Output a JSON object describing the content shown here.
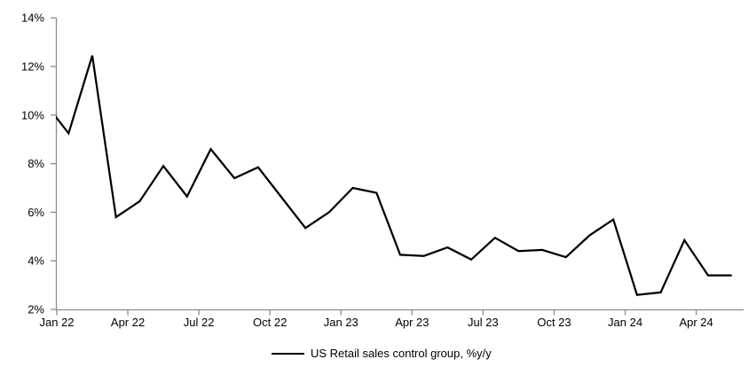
{
  "chart_data": {
    "type": "line",
    "title": "",
    "xlabel": "",
    "ylabel": "",
    "grid": false,
    "legend": "US Retail sales control group, %y/y",
    "legend_position": "bottom-center",
    "line_color": "#000000",
    "axis_color": "#8c8c8c",
    "text_color": "#000000",
    "ylim": [
      2,
      14
    ],
    "y_tick_labels": [
      "2%",
      "4%",
      "6%",
      "8%",
      "10%",
      "12%",
      "14%"
    ],
    "y_tick_values": [
      2,
      4,
      6,
      8,
      10,
      12,
      14
    ],
    "x_tick_labels": [
      {
        "label": "Jan 22",
        "month_index": 1
      },
      {
        "label": "Apr 22",
        "month_index": 4
      },
      {
        "label": "Jul 22",
        "month_index": 7
      },
      {
        "label": "Oct 22",
        "month_index": 10
      },
      {
        "label": "Jan 23",
        "month_index": 13
      },
      {
        "label": "Apr 23",
        "month_index": 16
      },
      {
        "label": "Jul 23",
        "month_index": 19
      },
      {
        "label": "Oct 23",
        "month_index": 22
      },
      {
        "label": "Jan 24",
        "month_index": 25
      },
      {
        "label": "Apr 24",
        "month_index": 28
      }
    ],
    "series": [
      {
        "name": "US Retail sales control group, %y/y",
        "x": [
          "Dec 21",
          "Jan 22",
          "Feb 22",
          "Mar 22",
          "Apr 22",
          "May 22",
          "Jun 22",
          "Jul 22",
          "Aug 22",
          "Sep 22",
          "Oct 22",
          "Nov 22",
          "Dec 22",
          "Jan 23",
          "Feb 23",
          "Mar 23",
          "Apr 23",
          "May 23",
          "Jun 23",
          "Jul 23",
          "Aug 23",
          "Sep 23",
          "Oct 23",
          "Nov 23",
          "Dec 23",
          "Jan 24",
          "Feb 24",
          "Mar 24",
          "Apr 24",
          "May 24"
        ],
        "values": [
          10.5,
          9.25,
          12.45,
          5.8,
          6.45,
          7.9,
          6.65,
          8.6,
          7.4,
          7.85,
          6.6,
          5.35,
          6.0,
          7.0,
          6.8,
          4.25,
          4.2,
          4.55,
          4.05,
          4.95,
          4.4,
          4.45,
          4.15,
          5.05,
          5.7,
          2.6,
          2.7,
          4.85,
          3.4,
          3.4
        ]
      }
    ]
  }
}
